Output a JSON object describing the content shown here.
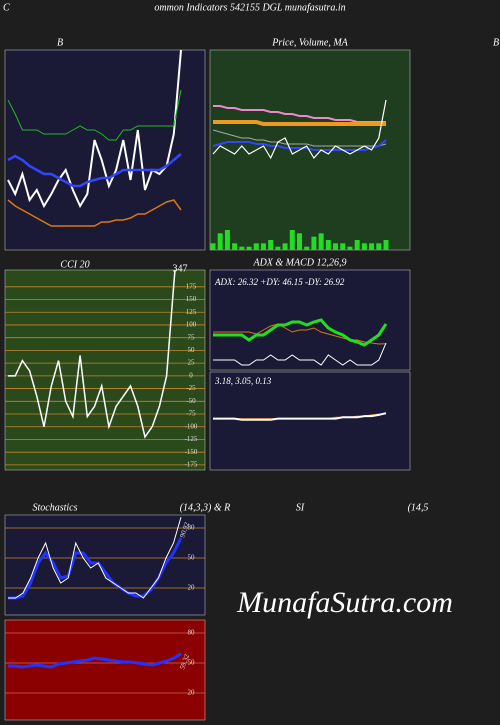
{
  "header": {
    "prefix": "C",
    "title": "ommon Indicators 542155 DGL munafasutra.in",
    "edge": "B"
  },
  "watermark": "MunafaSutra.com",
  "chart_data": [
    {
      "type": "line",
      "title": "B",
      "ylim": [
        0,
        100
      ],
      "series": [
        {
          "color": "#ffffff",
          "values": [
            35,
            28,
            38,
            25,
            30,
            22,
            28,
            35,
            40,
            30,
            22,
            28,
            55,
            45,
            32,
            40,
            55,
            35,
            60,
            30,
            40,
            38,
            42,
            58,
            100
          ]
        },
        {
          "color": "#22bb22",
          "values": [
            75,
            68,
            60,
            60,
            60,
            58,
            58,
            58,
            58,
            60,
            62,
            60,
            60,
            58,
            55,
            55,
            60,
            60,
            62,
            62,
            62,
            62,
            62,
            62,
            80
          ]
        },
        {
          "color": "#3344ff",
          "values": [
            45,
            47,
            45,
            42,
            40,
            38,
            38,
            36,
            34,
            32,
            32,
            34,
            35,
            36,
            36,
            38,
            40,
            40,
            40,
            40,
            40,
            40,
            42,
            45,
            48
          ]
        },
        {
          "color": "#dd7711",
          "values": [
            25,
            22,
            20,
            18,
            16,
            14,
            12,
            12,
            12,
            12,
            12,
            12,
            12,
            14,
            14,
            15,
            15,
            16,
            18,
            18,
            20,
            22,
            24,
            25,
            20
          ]
        }
      ]
    },
    {
      "type": "line",
      "title": "Price,  Volume,  MA",
      "ylim": [
        0,
        100
      ],
      "y2lim": [
        0,
        60
      ],
      "series": [
        {
          "color": "#ee88cc",
          "values": [
            72,
            72,
            71,
            71,
            70,
            70,
            70,
            70,
            69,
            69,
            68,
            68,
            67,
            67,
            66,
            66,
            66,
            65,
            65,
            65,
            64,
            64,
            64,
            64,
            64
          ]
        },
        {
          "color": "#ee9922",
          "values": [
            64,
            64,
            64,
            64,
            64,
            64,
            64,
            63,
            63,
            63,
            63,
            63,
            63,
            63,
            63,
            63,
            63,
            63,
            63,
            63,
            63,
            63,
            63,
            63,
            63
          ]
        },
        {
          "color": "#aaaaaa",
          "values": [
            60,
            59,
            58,
            57,
            56,
            56,
            55,
            55,
            54,
            54,
            53,
            53,
            53,
            53,
            52,
            52,
            52,
            52,
            52,
            52,
            52,
            52,
            52,
            52,
            53
          ]
        },
        {
          "color": "#3344ff",
          "values": [
            52,
            53,
            54,
            54,
            54,
            54,
            53,
            53,
            52,
            52,
            51,
            51,
            51,
            51,
            50,
            50,
            50,
            50,
            50,
            50,
            50,
            50,
            51,
            52,
            55
          ]
        },
        {
          "color": "#ffffff",
          "values": [
            48,
            52,
            50,
            48,
            52,
            48,
            50,
            52,
            46,
            54,
            56,
            48,
            50,
            52,
            46,
            50,
            48,
            52,
            50,
            48,
            50,
            52,
            50,
            56,
            75
          ]
        },
        {
          "type": "bar",
          "axis": "y2",
          "color": "#22dd22",
          "values": [
            2,
            5,
            6,
            2,
            1,
            1,
            2,
            2,
            3,
            1,
            2,
            6,
            5,
            1,
            4,
            5,
            3,
            2,
            2,
            1,
            3,
            2,
            2,
            2,
            3
          ]
        }
      ]
    },
    {
      "type": "line",
      "title": "CCI 20",
      "ylim": [
        -185,
        208
      ],
      "yticks": [
        175,
        150,
        125,
        100,
        75,
        50,
        25,
        0,
        -25,
        -50,
        -75,
        -100,
        -125,
        -150,
        -175
      ],
      "grid": true,
      "grid_color": "#c8852a",
      "series": [
        {
          "color": "#ffffff",
          "values": [
            0,
            0,
            30,
            10,
            -40,
            -100,
            -20,
            30,
            -50,
            -80,
            40,
            -80,
            -60,
            -20,
            -100,
            -60,
            -40,
            -20,
            -60,
            -120,
            -100,
            -60,
            0,
            180,
            347
          ]
        }
      ]
    },
    {
      "type": "line",
      "title": "ADX  & MACD 12,26,9",
      "subtitle": "ADX: 26.32  +DY: 46.15 -DY: 26.92",
      "ylim": [
        0,
        100
      ],
      "series": [
        {
          "color": "#dd7711",
          "values": [
            38,
            38,
            38,
            38,
            38,
            38,
            36,
            40,
            44,
            46,
            42,
            38,
            40,
            40,
            42,
            38,
            36,
            34,
            32,
            30,
            30,
            28,
            27,
            26,
            26.32
          ]
        },
        {
          "color": "#ffffff",
          "values": [
            10,
            10,
            10,
            10,
            5,
            5,
            10,
            10,
            15,
            10,
            10,
            15,
            10,
            10,
            10,
            5,
            15,
            10,
            5,
            10,
            5,
            5,
            5,
            10,
            26.92
          ]
        },
        {
          "color": "#22dd22",
          "values": [
            35,
            35,
            35,
            35,
            35,
            30,
            35,
            35,
            40,
            45,
            45,
            48,
            48,
            45,
            48,
            50,
            42,
            38,
            35,
            30,
            28,
            25,
            30,
            35,
            46.15
          ]
        }
      ]
    },
    {
      "type": "line",
      "subtitle": "3.18,  3.05,  0.13",
      "ylim": [
        -20,
        20
      ],
      "series": [
        {
          "color": "#dd7711",
          "values": [
            1,
            1,
            1,
            1,
            1,
            1,
            1,
            1,
            1,
            1,
            1,
            1,
            1,
            1,
            1,
            1,
            1,
            1.5,
            1.5,
            1.5,
            2,
            2,
            2.5,
            2.8,
            3.05
          ]
        },
        {
          "color": "#ffffff",
          "values": [
            1,
            1,
            1,
            1,
            0.5,
            0.5,
            0.5,
            0.5,
            0.5,
            1,
            1,
            1,
            1,
            1,
            1,
            1,
            1,
            1,
            1.5,
            1.5,
            1.5,
            2,
            2,
            2.5,
            3.18
          ]
        }
      ]
    },
    {
      "type": "line",
      "title": [
        "Stochastics",
        "(14,3,3) & R",
        "SI",
        "(14,5"
      ],
      "ylim": [
        -7,
        93
      ],
      "yticks": [
        80,
        50,
        20
      ],
      "grid": true,
      "grid_color": "#c8852a",
      "series": [
        {
          "color": "#2233ff",
          "values": [
            10,
            10,
            12,
            25,
            45,
            55,
            45,
            30,
            32,
            55,
            55,
            45,
            45,
            35,
            25,
            20,
            15,
            12,
            12,
            18,
            30,
            45,
            55,
            70
          ]
        },
        {
          "color": "#ffffff",
          "values": [
            10,
            10,
            15,
            30,
            50,
            65,
            40,
            25,
            30,
            65,
            50,
            40,
            45,
            30,
            25,
            20,
            15,
            15,
            10,
            20,
            30,
            50,
            65,
            90.92
          ]
        }
      ]
    },
    {
      "type": "line",
      "ylim": [
        -7,
        93
      ],
      "yticks": [
        80,
        50,
        20
      ],
      "grid": true,
      "grid_color": "#cc6655",
      "series": [
        {
          "color": "#2233ff",
          "values": [
            47,
            47,
            46,
            47,
            48,
            47,
            46,
            49,
            50,
            51,
            52,
            53,
            55,
            54,
            53,
            52,
            51,
            51,
            50,
            49,
            48,
            50,
            52,
            55,
            59.32
          ]
        }
      ]
    }
  ]
}
